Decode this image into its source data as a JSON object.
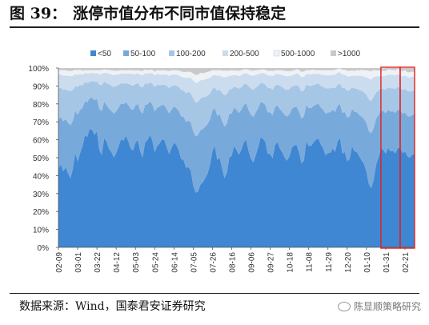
{
  "figure": {
    "title_number": "图 39：",
    "title_text": "涨停市值分布不同市值保持稳定",
    "source": "数据来源：Wind，国泰君安证券研究",
    "watermark": "陈显顺策略研究",
    "watermark_icon": "wechat-icon"
  },
  "chart_data": {
    "type": "area",
    "stacked": true,
    "percent": true,
    "ylim": [
      0,
      100
    ],
    "y_ticks": [
      "0%",
      "10%",
      "20%",
      "30%",
      "40%",
      "50%",
      "60%",
      "70%",
      "80%",
      "90%",
      "100%"
    ],
    "x_ticks": [
      "02-09",
      "03-01",
      "03-22",
      "04-12",
      "05-03",
      "05-24",
      "06-14",
      "07-05",
      "07-26",
      "08-16",
      "09-06",
      "09-27",
      "10-18",
      "11-08",
      "11-29",
      "12-20",
      "01-10",
      "01-31",
      "02-21"
    ],
    "x_tick_index": [
      0,
      8,
      16,
      24,
      32,
      40,
      48,
      56,
      64,
      72,
      80,
      88,
      96,
      104,
      112,
      120,
      128,
      136,
      144
    ],
    "x_count": 149,
    "highlight_ranges": [
      [
        134,
        142
      ],
      [
        142,
        148
      ]
    ],
    "highlight_color": "#e02020",
    "colors": [
      "#3f87d2",
      "#78a9db",
      "#a6c6e6",
      "#cbdcee",
      "#eef2f7",
      "#c9c9c9"
    ],
    "series": [
      {
        "name": "<50",
        "values": [
          43.9,
          46.3,
          42.4,
          44.7,
          41.3,
          38.5,
          43.8,
          52.8,
          47.8,
          52.6,
          56.3,
          62.6,
          61.6,
          66.2,
          65.4,
          62.7,
          64.8,
          54.3,
          51.6,
          60.8,
          59.1,
          54.8,
          53.3,
          50.1,
          52.5,
          56.4,
          60.3,
          59.5,
          62.2,
          59.4,
          55.2,
          54.0,
          58.3,
          59.8,
          53.5,
          50.1,
          58.4,
          59.8,
          62.8,
          59.8,
          53.2,
          56.5,
          57.8,
          60.2,
          59.9,
          55.9,
          52.0,
          55.3,
          58.4,
          57.1,
          54.3,
          49.2,
          48.8,
          44.4,
          44.8,
          42.8,
          34.6,
          30.5,
          31.1,
          35.0,
          36.3,
          38.6,
          41.2,
          46.1,
          53.8,
          56.6,
          48.8,
          50.2,
          44.1,
          38.7,
          41.5,
          50.1,
          51.0,
          56.6,
          54.3,
          51.7,
          54.5,
          58.5,
          60.1,
          53.8,
          49.5,
          47.3,
          51.4,
          55.8,
          61.4,
          60.6,
          58.8,
          52.0,
          52.0,
          49.8,
          56.8,
          58.9,
          55.1,
          53.0,
          50.0,
          48.4,
          50.8,
          55.5,
          57.0,
          57.1,
          52.9,
          46.8,
          48.3,
          59.2,
          56.5,
          56.5,
          58.6,
          60.0,
          60.9,
          57.4,
          55.3,
          51.4,
          52.6,
          52.7,
          55.2,
          53.3,
          59.2,
          61.0,
          52.3,
          53.2,
          48.1,
          49.2,
          56.3,
          53.7,
          53.1,
          50.7,
          48.5,
          46.5,
          42.3,
          35.2,
          33.0,
          37.6,
          46.1,
          50.0,
          55.2,
          54.3,
          52.3,
          55.5,
          53.6,
          53.9,
          52.4,
          55.4,
          55.6,
          52.5,
          53.6,
          50.9,
          50.0,
          51.6,
          52.2
        ]
      },
      {
        "name": "50-100",
        "values": [
          27.5,
          26.5,
          27.9,
          26.9,
          28.2,
          29.6,
          26.8,
          23.3,
          26.2,
          24.1,
          21.6,
          18.9,
          19.3,
          17.0,
          18.0,
          19.4,
          18.1,
          22.9,
          24.3,
          20.4,
          20.3,
          22.6,
          22.8,
          24.5,
          23.4,
          21.6,
          19.9,
          20.3,
          18.7,
          20.0,
          22.1,
          22.6,
          20.9,
          20.2,
          22.8,
          24.4,
          21.1,
          19.9,
          18.6,
          20.0,
          22.6,
          21.4,
          20.6,
          19.3,
          19.3,
          21.2,
          22.7,
          21.6,
          20.2,
          20.6,
          21.9,
          23.9,
          24.0,
          25.6,
          25.9,
          26.9,
          30.1,
          31.4,
          31.6,
          30.3,
          29.7,
          28.6,
          27.6,
          25.4,
          22.6,
          21.2,
          24.6,
          24.2,
          26.3,
          28.7,
          27.5,
          24.4,
          23.7,
          21.4,
          22.4,
          23.3,
          22.2,
          20.8,
          20.3,
          22.8,
          24.5,
          25.4,
          23.8,
          21.9,
          19.5,
          20.1,
          20.5,
          23.2,
          23.4,
          24.0,
          21.4,
          20.3,
          22.0,
          22.7,
          23.9,
          24.6,
          23.4,
          21.7,
          21.2,
          21.3,
          22.8,
          25.0,
          24.8,
          20.2,
          21.1,
          21.2,
          20.2,
          19.6,
          19.3,
          20.6,
          21.5,
          23.2,
          22.6,
          22.6,
          21.6,
          22.2,
          19.9,
          19.0,
          22.7,
          22.3,
          24.3,
          23.8,
          20.9,
          21.9,
          22.3,
          23.2,
          24.3,
          25.1,
          26.9,
          29.6,
          30.7,
          29.0,
          25.6,
          23.8,
          21.2,
          21.7,
          22.6,
          21.3,
          22.1,
          22.0,
          22.6,
          21.4,
          20.9,
          22.0,
          21.6,
          22.4,
          22.9,
          22.2,
          22.0
        ]
      },
      {
        "name": "100-200",
        "values": [
          17.1,
          16.2,
          17.5,
          16.6,
          17.9,
          19.1,
          17.1,
          13.8,
          15.5,
          13.8,
          12.4,
          10.5,
          10.8,
          9.1,
          9.4,
          10.2,
          9.6,
          13.4,
          14.6,
          11.3,
          12.2,
          13.6,
          14.1,
          14.8,
          14.1,
          12.5,
          11.3,
          11.6,
          10.6,
          11.8,
          13.3,
          13.5,
          11.9,
          11.6,
          13.5,
          14.7,
          12.0,
          11.5,
          10.5,
          11.5,
          13.6,
          12.8,
          12.1,
          11.1,
          11.5,
          13.0,
          14.0,
          13.0,
          11.8,
          12.4,
          13.3,
          14.8,
          14.6,
          16.1,
          15.9,
          16.3,
          18.4,
          19.0,
          18.5,
          17.6,
          17.6,
          16.7,
          15.8,
          14.2,
          12.0,
          11.4,
          13.9,
          13.6,
          15.7,
          17.5,
          16.4,
          13.6,
          13.5,
          11.6,
          12.5,
          13.5,
          12.6,
          11.5,
          11.0,
          13.2,
          14.6,
          15.1,
          13.9,
          12.4,
          10.6,
          10.9,
          11.5,
          13.6,
          13.5,
          14.1,
          11.9,
          11.6,
          13.0,
          13.7,
          14.4,
          14.7,
          14.1,
          12.4,
          11.8,
          12.2,
          13.7,
          15.1,
          14.4,
          11.4,
          12.6,
          12.3,
          11.8,
          11.3,
          11.3,
          12.1,
          12.7,
          14.0,
          13.5,
          13.5,
          12.3,
          13.3,
          11.7,
          11.2,
          13.8,
          13.4,
          14.8,
          14.7,
          12.0,
          13.0,
          13.1,
          13.8,
          14.6,
          14.8,
          16.0,
          17.7,
          17.9,
          17.6,
          14.6,
          13.7,
          12.3,
          12.3,
          13.1,
          12.4,
          13.0,
          12.8,
          13.3,
          12.8,
          12.4,
          13.3,
          13.2,
          13.9,
          14.0,
          13.6,
          13.1
        ]
      },
      {
        "name": "200-500",
        "values": [
          7.8,
          7.4,
          8.0,
          7.7,
          8.2,
          8.4,
          8.0,
          6.7,
          6.7,
          6.3,
          6.0,
          5.2,
          5.3,
          4.8,
          4.5,
          4.8,
          4.7,
          6.0,
          6.2,
          5.0,
          5.6,
          6.1,
          6.2,
          6.6,
          6.3,
          6.0,
          5.4,
          5.4,
          5.4,
          5.7,
          6.3,
          6.5,
          5.6,
          5.5,
          6.4,
          6.7,
          5.7,
          5.6,
          5.4,
          5.8,
          6.4,
          6.2,
          6.0,
          5.7,
          5.8,
          6.2,
          6.9,
          6.4,
          6.0,
          6.2,
          6.5,
          7.2,
          7.5,
          8.4,
          8.2,
          8.5,
          10.1,
          10.9,
          10.8,
          10.3,
          9.7,
          9.8,
          9.6,
          8.9,
          7.5,
          6.9,
          8.4,
          7.9,
          9.0,
          10.1,
          9.6,
          7.6,
          7.6,
          6.6,
          6.7,
          7.1,
          6.8,
          6.1,
          5.9,
          6.7,
          7.3,
          7.9,
          7.1,
          6.5,
          5.6,
          5.6,
          6.1,
          7.0,
          7.0,
          7.6,
          6.3,
          6.0,
          6.4,
          6.8,
          7.3,
          7.7,
          7.3,
          6.4,
          6.4,
          6.6,
          7.1,
          8.0,
          7.6,
          5.9,
          6.4,
          6.6,
          6.2,
          5.8,
          5.5,
          6.2,
          6.7,
          7.3,
          7.2,
          7.2,
          7.0,
          7.5,
          6.7,
          6.4,
          7.6,
          7.4,
          8.1,
          7.6,
          6.6,
          7.0,
          7.4,
          7.9,
          8.3,
          8.8,
          9.6,
          11.6,
          11.9,
          10.9,
          9.0,
          8.0,
          6.9,
          7.3,
          7.7,
          7.1,
          7.6,
          7.5,
          7.7,
          7.0,
          7.0,
          7.5,
          7.6,
          7.8,
          7.7,
          7.9,
          7.8
        ]
      },
      {
        "name": "500-1000",
        "values": [
          2.5,
          2.5,
          2.9,
          2.8,
          2.8,
          2.8,
          2.8,
          2.5,
          2.6,
          2.3,
          2.2,
          1.6,
          1.8,
          1.7,
          1.5,
          1.8,
          1.6,
          2.2,
          2.2,
          1.7,
          1.8,
          1.9,
          2.3,
          2.5,
          2.2,
          2.1,
          2.0,
          1.9,
          1.8,
          1.9,
          2.0,
          2.0,
          2.0,
          1.7,
          2.3,
          2.4,
          2.0,
          1.9,
          1.7,
          2.0,
          2.1,
          2.0,
          2.2,
          2.4,
          2.3,
          2.3,
          2.7,
          2.4,
          2.4,
          2.4,
          2.6,
          3.0,
          2.9,
          3.3,
          3.2,
          3.3,
          3.8,
          4.4,
          4.3,
          4.2,
          3.8,
          3.8,
          3.6,
          3.6,
          2.9,
          2.7,
          3.0,
          3.0,
          3.4,
          3.6,
          3.5,
          2.9,
          2.9,
          2.5,
          2.6,
          2.9,
          2.6,
          2.3,
          2.1,
          2.5,
          2.7,
          2.8,
          2.6,
          2.3,
          2.0,
          2.1,
          2.1,
          2.6,
          2.6,
          2.9,
          2.3,
          2.0,
          2.3,
          2.6,
          2.7,
          2.9,
          2.6,
          2.5,
          2.3,
          2.2,
          2.4,
          3.0,
          3.0,
          2.2,
          2.2,
          2.3,
          2.3,
          2.1,
          1.9,
          2.4,
          2.5,
          2.9,
          2.8,
          2.8,
          2.6,
          2.7,
          2.1,
          2.2,
          2.7,
          2.8,
          3.2,
          3.1,
          2.9,
          2.7,
          2.9,
          3.1,
          3.3,
          3.6,
          4.0,
          4.4,
          4.7,
          3.8,
          3.4,
          3.1,
          2.7,
          2.9,
          2.7,
          3.0,
          2.8,
          2.8,
          2.7,
          3.0,
          3.0,
          2.9,
          2.9,
          2.7,
          3.0,
          2.8,
          2.5
        ]
      },
      {
        "name": ">1000",
        "values": [
          1.2,
          1.1,
          1.3,
          1.3,
          1.6,
          1.6,
          1.5,
          0.9,
          1.2,
          0.9,
          1.5,
          1.2,
          1.2,
          1.2,
          1.2,
          1.1,
          1.2,
          1.2,
          1.1,
          0.8,
          1.0,
          1.0,
          1.3,
          1.5,
          1.5,
          1.4,
          1.1,
          1.3,
          1.3,
          1.2,
          1.1,
          1.4,
          1.3,
          1.2,
          1.5,
          1.7,
          0.8,
          1.3,
          1.0,
          0.9,
          2.1,
          1.1,
          1.3,
          1.3,
          1.2,
          1.4,
          1.7,
          1.3,
          1.2,
          1.3,
          1.4,
          1.9,
          2.2,
          2.2,
          2.0,
          2.2,
          3.0,
          3.8,
          3.7,
          2.6,
          2.9,
          2.5,
          2.2,
          1.8,
          1.2,
          1.2,
          1.3,
          1.1,
          1.5,
          1.4,
          1.5,
          1.4,
          1.3,
          1.3,
          1.5,
          1.5,
          1.3,
          0.8,
          0.6,
          1.0,
          1.4,
          1.5,
          1.2,
          1.1,
          0.9,
          0.7,
          1.0,
          1.6,
          1.5,
          1.6,
          1.3,
          1.2,
          1.2,
          1.2,
          1.7,
          1.7,
          1.8,
          1.5,
          1.3,
          0.6,
          1.1,
          2.1,
          1.9,
          1.1,
          1.2,
          1.1,
          0.9,
          1.2,
          1.1,
          1.3,
          1.3,
          1.2,
          1.3,
          1.2,
          2.3,
          1.0,
          0.4,
          0.2,
          0.9,
          1.2,
          1.5,
          1.6,
          1.3,
          1.7,
          2.2,
          1.3,
          1.0,
          1.2,
          1.2,
          1.5,
          1.8,
          1.1,
          1.3,
          1.4,
          2.0,
          1.3,
          2.1,
          1.9,
          1.7,
          2.0,
          1.9,
          1.8,
          2.8,
          3.2,
          2.7,
          2.3,
          3.7,
          4.4,
          3.4
        ]
      }
    ]
  }
}
